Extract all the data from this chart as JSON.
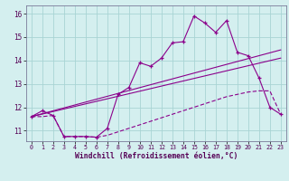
{
  "xlabel": "Windchill (Refroidissement éolien,°C)",
  "background_color": "#d4efef",
  "line_color": "#8b008b",
  "grid_color": "#a8d4d4",
  "x_ticks": [
    0,
    1,
    2,
    3,
    4,
    5,
    6,
    7,
    8,
    9,
    10,
    11,
    12,
    13,
    14,
    15,
    16,
    17,
    18,
    19,
    20,
    21,
    22,
    23
  ],
  "y_ticks": [
    11,
    12,
    13,
    14,
    15,
    16
  ],
  "ylim": [
    10.55,
    16.35
  ],
  "xlim": [
    -0.5,
    23.5
  ],
  "line1_x": [
    0,
    1,
    2,
    3,
    4,
    5,
    6,
    7,
    8,
    9,
    10,
    11,
    12,
    13,
    14,
    15,
    16,
    17,
    18,
    19,
    20,
    21,
    22,
    23
  ],
  "line1_y": [
    11.6,
    11.85,
    11.65,
    10.75,
    10.75,
    10.75,
    10.72,
    11.1,
    12.55,
    12.85,
    13.9,
    13.75,
    14.1,
    14.75,
    14.8,
    15.9,
    15.6,
    15.2,
    15.7,
    14.35,
    14.2,
    13.25,
    12.0,
    11.7
  ],
  "line2_x": [
    0,
    23
  ],
  "line2_y": [
    11.6,
    14.45
  ],
  "line3_x": [
    0,
    23
  ],
  "line3_y": [
    11.6,
    14.1
  ],
  "line4_x": [
    0,
    1,
    2,
    3,
    4,
    5,
    6,
    7,
    8,
    9,
    10,
    11,
    12,
    13,
    14,
    15,
    16,
    17,
    18,
    19,
    20,
    21,
    22,
    23
  ],
  "line4_y": [
    11.6,
    11.6,
    11.65,
    10.75,
    10.75,
    10.75,
    10.72,
    10.8,
    10.95,
    11.1,
    11.25,
    11.4,
    11.55,
    11.7,
    11.85,
    12.0,
    12.15,
    12.3,
    12.45,
    12.55,
    12.65,
    12.7,
    12.7,
    11.7
  ]
}
